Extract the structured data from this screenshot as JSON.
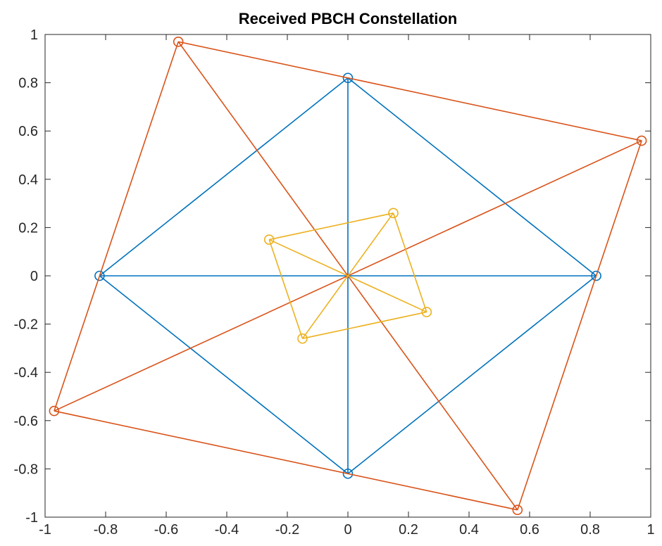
{
  "chart_data": {
    "type": "scatter",
    "title": "Received PBCH Constellation",
    "xlabel": "",
    "ylabel": "",
    "xlim": [
      -1,
      1
    ],
    "ylim": [
      -1,
      1
    ],
    "x_ticks": [
      -1,
      -0.8,
      -0.6,
      -0.4,
      -0.2,
      0,
      0.2,
      0.4,
      0.6,
      0.8,
      1
    ],
    "y_ticks": [
      -1,
      -0.8,
      -0.6,
      -0.4,
      -0.2,
      0,
      0.2,
      0.4,
      0.6,
      0.8,
      1
    ],
    "x_tick_labels": [
      "-1",
      "-0.8",
      "-0.6",
      "-0.4",
      "-0.2",
      "0",
      "0.2",
      "0.4",
      "0.6",
      "0.8",
      "1"
    ],
    "y_tick_labels": [
      "-1",
      "-0.8",
      "-0.6",
      "-0.4",
      "-0.2",
      "0",
      "0.2",
      "0.4",
      "0.6",
      "0.8",
      "1"
    ],
    "grid": false,
    "box": true,
    "marker": "circle",
    "series": [
      {
        "color": "#0072BD",
        "points": [
          {
            "x": 0,
            "y": 0.82
          },
          {
            "x": 0.82,
            "y": 0
          },
          {
            "x": 0,
            "y": -0.82
          },
          {
            "x": -0.82,
            "y": 0
          }
        ],
        "lines": [
          {
            "from": [
              0,
              0.82
            ],
            "to": [
              0.82,
              0
            ]
          },
          {
            "from": [
              0.82,
              0
            ],
            "to": [
              0,
              -0.82
            ]
          },
          {
            "from": [
              0,
              -0.82
            ],
            "to": [
              -0.82,
              0
            ]
          },
          {
            "from": [
              -0.82,
              0
            ],
            "to": [
              0,
              0.82
            ]
          },
          {
            "from": [
              0,
              0.82
            ],
            "to": [
              0,
              -0.82
            ]
          },
          {
            "from": [
              -0.82,
              0
            ],
            "to": [
              0.82,
              0
            ]
          }
        ]
      },
      {
        "color": "#D95319",
        "points": [
          {
            "x": -0.56,
            "y": 0.97
          },
          {
            "x": 0.97,
            "y": 0.56
          },
          {
            "x": 0.56,
            "y": -0.97
          },
          {
            "x": -0.97,
            "y": -0.56
          }
        ],
        "lines": [
          {
            "from": [
              -0.56,
              0.97
            ],
            "to": [
              0.97,
              0.56
            ]
          },
          {
            "from": [
              0.97,
              0.56
            ],
            "to": [
              0.56,
              -0.97
            ]
          },
          {
            "from": [
              0.56,
              -0.97
            ],
            "to": [
              -0.97,
              -0.56
            ]
          },
          {
            "from": [
              -0.97,
              -0.56
            ],
            "to": [
              -0.56,
              0.97
            ]
          },
          {
            "from": [
              -0.56,
              0.97
            ],
            "to": [
              0.56,
              -0.97
            ]
          },
          {
            "from": [
              -0.97,
              -0.56
            ],
            "to": [
              0.97,
              0.56
            ]
          }
        ]
      },
      {
        "color": "#EDB120",
        "points": [
          {
            "x": 0.15,
            "y": 0.26
          },
          {
            "x": -0.26,
            "y": 0.15
          },
          {
            "x": -0.15,
            "y": -0.26
          },
          {
            "x": 0.26,
            "y": -0.15
          }
        ],
        "lines": [
          {
            "from": [
              0.15,
              0.26
            ],
            "to": [
              -0.26,
              0.15
            ]
          },
          {
            "from": [
              0.15,
              0.26
            ],
            "to": [
              0.26,
              -0.15
            ]
          },
          {
            "from": [
              -0.26,
              0.15
            ],
            "to": [
              -0.15,
              -0.26
            ]
          },
          {
            "from": [
              -0.15,
              -0.26
            ],
            "to": [
              0.26,
              -0.15
            ]
          },
          {
            "from": [
              0.15,
              0.26
            ],
            "to": [
              -0.15,
              -0.26
            ]
          },
          {
            "from": [
              -0.26,
              0.15
            ],
            "to": [
              0.26,
              -0.15
            ]
          }
        ]
      }
    ]
  }
}
